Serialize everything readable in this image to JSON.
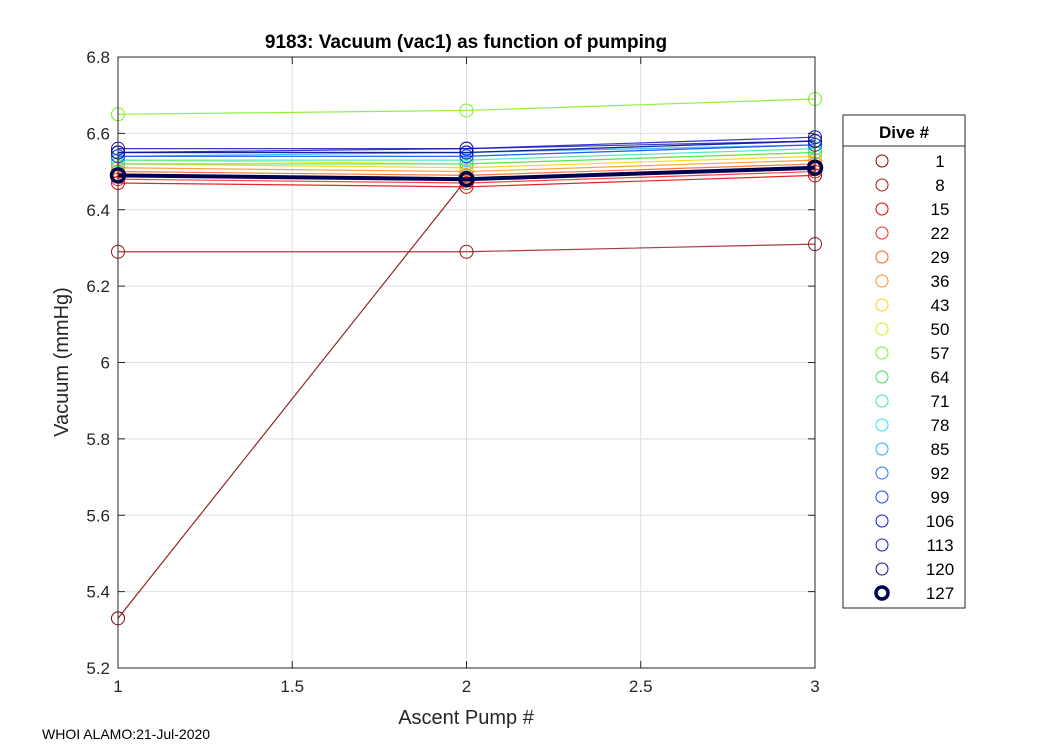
{
  "chart_data": {
    "type": "line",
    "title": "9183: Vacuum (vac1) as function of pumping",
    "xlabel": "Ascent Pump #",
    "ylabel": "Vacuum (mmHg)",
    "xlim": [
      1,
      3
    ],
    "ylim": [
      5.2,
      6.8
    ],
    "grid": true,
    "x": [
      1,
      2,
      3
    ],
    "xticks": [
      1,
      1.5,
      2,
      2.5,
      3
    ],
    "xtick_labels": [
      "1",
      "1.5",
      "2",
      "2.5",
      "3"
    ],
    "yticks": [
      5.2,
      5.4,
      5.6,
      5.8,
      6.0,
      6.2,
      6.4,
      6.6,
      6.8
    ],
    "ytick_labels": [
      "5.2",
      "5.4",
      "5.6",
      "5.8",
      "6",
      "6.2",
      "6.4",
      "6.6",
      "6.8"
    ],
    "legend_title": "Dive #",
    "legend_placement": "outside-right",
    "series": [
      {
        "name": "1",
        "color": "#7f0000",
        "values": [
          5.33,
          6.48,
          6.51
        ]
      },
      {
        "name": "8",
        "color": "#9a1a1a",
        "values": [
          6.29,
          6.29,
          6.31
        ]
      },
      {
        "name": "15",
        "color": "#e00000",
        "values": [
          6.47,
          6.46,
          6.49
        ]
      },
      {
        "name": "22",
        "color": "#ff2020",
        "values": [
          6.48,
          6.47,
          6.5
        ]
      },
      {
        "name": "29",
        "color": "#ff5a1e",
        "values": [
          6.5,
          6.49,
          6.52
        ]
      },
      {
        "name": "36",
        "color": "#ff9020",
        "values": [
          6.51,
          6.5,
          6.53
        ]
      },
      {
        "name": "43",
        "color": "#ffd000",
        "values": [
          6.52,
          6.51,
          6.54
        ]
      },
      {
        "name": "50",
        "color": "#d8f000",
        "values": [
          6.53,
          6.52,
          6.55
        ]
      },
      {
        "name": "57",
        "color": "#7af020",
        "values": [
          6.65,
          6.66,
          6.69
        ]
      },
      {
        "name": "64",
        "color": "#40e060",
        "values": [
          6.52,
          6.52,
          6.55
        ]
      },
      {
        "name": "71",
        "color": "#30e8b0",
        "values": [
          6.53,
          6.53,
          6.56
        ]
      },
      {
        "name": "78",
        "color": "#20e8f0",
        "values": [
          6.54,
          6.54,
          6.57
        ]
      },
      {
        "name": "85",
        "color": "#20b0ff",
        "values": [
          6.54,
          6.55,
          6.57
        ]
      },
      {
        "name": "92",
        "color": "#3070ff",
        "values": [
          6.55,
          6.55,
          6.58
        ]
      },
      {
        "name": "99",
        "color": "#2040ff",
        "values": [
          6.54,
          6.54,
          6.57
        ]
      },
      {
        "name": "106",
        "color": "#1010e0",
        "values": [
          6.55,
          6.56,
          6.59
        ]
      },
      {
        "name": "113",
        "color": "#1818b0",
        "values": [
          6.56,
          6.56,
          6.58
        ]
      },
      {
        "name": "120",
        "color": "#101080",
        "values": [
          6.55,
          6.55,
          6.58
        ]
      },
      {
        "name": "127",
        "color": "#000050",
        "values": [
          6.49,
          6.48,
          6.51
        ],
        "bold": true
      }
    ]
  },
  "footer": "WHOI ALAMO:21-Jul-2020"
}
